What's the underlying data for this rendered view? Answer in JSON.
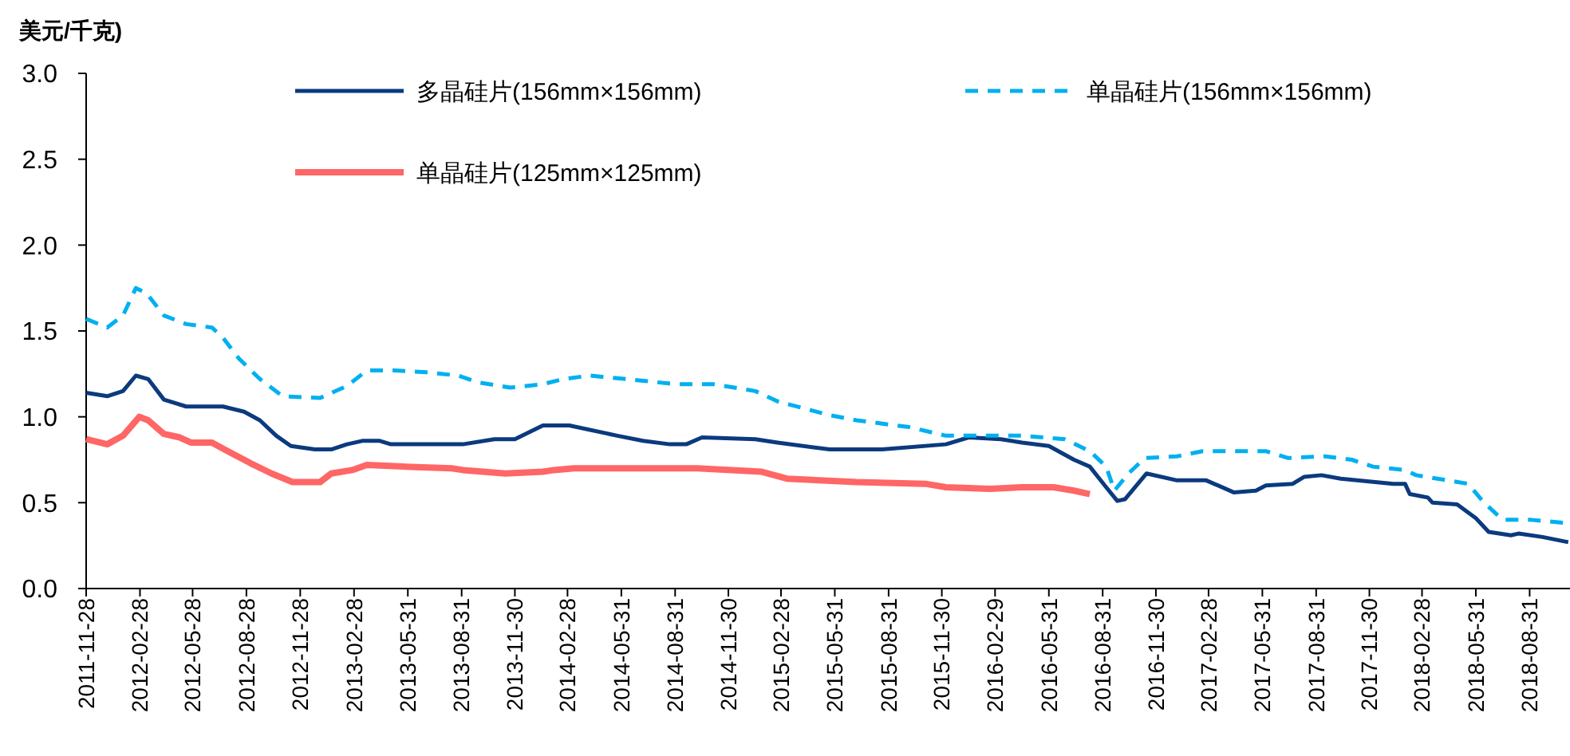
{
  "chart_data": {
    "type": "line",
    "ylabel": "美元/千克)",
    "xlim": [
      "2011-11-28",
      "2018-11-08"
    ],
    "ylim": [
      0,
      3
    ],
    "yticks": [
      {
        "value": 0,
        "label": "0.0"
      },
      {
        "value": 0.5,
        "label": "0.5"
      },
      {
        "value": 1,
        "label": "1.0"
      },
      {
        "value": 1.5,
        "label": "1.5"
      },
      {
        "value": 2,
        "label": "2.0"
      },
      {
        "value": 2.5,
        "label": "2.5"
      },
      {
        "value": 3,
        "label": "3.0"
      }
    ],
    "xticks": [
      {
        "value": "2011-11-28",
        "label": "2011-11-28"
      },
      {
        "value": "2012-02-28",
        "label": "2012-02-28"
      },
      {
        "value": "2012-05-28",
        "label": "2012-05-28"
      },
      {
        "value": "2012-08-28",
        "label": "2012-08-28"
      },
      {
        "value": "2012-11-28",
        "label": "2012-11-28"
      },
      {
        "value": "2013-02-28",
        "label": "2013-02-28"
      },
      {
        "value": "2013-05-31",
        "label": "2013-05-31"
      },
      {
        "value": "2013-08-31",
        "label": "2013-08-31"
      },
      {
        "value": "2013-11-30",
        "label": "2013-11-30"
      },
      {
        "value": "2014-02-28",
        "label": "2014-02-28"
      },
      {
        "value": "2014-05-31",
        "label": "2014-05-31"
      },
      {
        "value": "2014-08-31",
        "label": "2014-08-31"
      },
      {
        "value": "2014-11-30",
        "label": "2014-11-30"
      },
      {
        "value": "2015-02-28",
        "label": "2015-02-28"
      },
      {
        "value": "2015-05-31",
        "label": "2015-05-31"
      },
      {
        "value": "2015-08-31",
        "label": "2015-08-31"
      },
      {
        "value": "2015-11-30",
        "label": "2015-11-30"
      },
      {
        "value": "2016-02-29",
        "label": "2016-02-29"
      },
      {
        "value": "2016-05-31",
        "label": "2016-05-31"
      },
      {
        "value": "2016-08-31",
        "label": "2016-08-31"
      },
      {
        "value": "2016-11-30",
        "label": "2016-11-30"
      },
      {
        "value": "2017-02-28",
        "label": "2017-02-28"
      },
      {
        "value": "2017-05-31",
        "label": "2017-05-31"
      },
      {
        "value": "2017-08-31",
        "label": "2017-08-31"
      },
      {
        "value": "2017-11-30",
        "label": "2017-11-30"
      },
      {
        "value": "2018-02-28",
        "label": "2018-02-28"
      },
      {
        "value": "2018-05-31",
        "label": "2018-05-31"
      },
      {
        "value": "2018-08-31",
        "label": "2018-08-31"
      }
    ],
    "grid": false,
    "legend": "top",
    "marker": "none",
    "series": [
      {
        "name": "多晶硅片(156mm×156mm)",
        "color": "#0b3a7e",
        "line_style": "solid",
        "x": [
          "2011-11-28",
          "2012-01-03",
          "2012-01-30",
          "2012-02-21",
          "2012-03-13",
          "2012-04-09",
          "2012-05-17",
          "2012-07-19",
          "2012-08-24",
          "2012-09-20",
          "2012-10-18",
          "2012-11-12",
          "2012-12-23",
          "2013-01-20",
          "2013-02-16",
          "2013-03-14",
          "2013-04-13",
          "2013-05-02",
          "2013-07-01",
          "2013-09-02",
          "2013-10-26",
          "2013-11-30",
          "2014-01-17",
          "2014-03-03",
          "2014-05-24",
          "2014-07-07",
          "2014-08-22",
          "2014-09-19",
          "2014-10-16",
          "2015-01-15",
          "2015-02-22",
          "2015-05-22",
          "2015-08-20",
          "2015-12-07",
          "2016-01-15",
          "2016-03-10",
          "2016-04-15",
          "2016-05-31",
          "2016-07-13",
          "2016-08-09",
          "2016-09-06",
          "2016-09-25",
          "2016-10-08",
          "2016-11-14",
          "2017-01-05",
          "2017-02-24",
          "2017-04-12",
          "2017-05-20",
          "2017-06-06",
          "2017-07-22",
          "2017-08-10",
          "2017-09-09",
          "2017-10-12",
          "2018-01-10",
          "2018-01-30",
          "2018-02-07",
          "2018-03-10",
          "2018-03-18",
          "2018-04-29",
          "2018-05-31",
          "2018-06-22",
          "2018-07-30",
          "2018-08-12",
          "2018-09-22",
          "2018-11-05"
        ],
        "values": [
          1.14,
          1.12,
          1.15,
          1.24,
          1.22,
          1.1,
          1.06,
          1.06,
          1.03,
          0.98,
          0.89,
          0.83,
          0.81,
          0.81,
          0.84,
          0.86,
          0.86,
          0.84,
          0.84,
          0.84,
          0.87,
          0.87,
          0.95,
          0.95,
          0.89,
          0.86,
          0.84,
          0.84,
          0.88,
          0.87,
          0.85,
          0.81,
          0.81,
          0.84,
          0.88,
          0.87,
          0.85,
          0.83,
          0.75,
          0.71,
          0.59,
          0.51,
          0.52,
          0.67,
          0.63,
          0.63,
          0.56,
          0.57,
          0.6,
          0.61,
          0.65,
          0.66,
          0.64,
          0.61,
          0.61,
          0.55,
          0.53,
          0.5,
          0.49,
          0.41,
          0.33,
          0.31,
          0.32,
          0.3,
          0.27
        ]
      },
      {
        "name": "单晶硅片(156mm×156mm)",
        "color": "#00b0f0",
        "line_style": "dashed",
        "x": [
          "2011-11-28",
          "2012-01-03",
          "2012-01-30",
          "2012-02-21",
          "2012-03-10",
          "2012-04-09",
          "2012-05-17",
          "2012-06-30",
          "2012-07-19",
          "2012-08-15",
          "2012-09-20",
          "2012-10-29",
          "2013-01-01",
          "2013-02-16",
          "2013-03-22",
          "2013-05-07",
          "2013-07-01",
          "2013-08-25",
          "2013-09-29",
          "2013-11-22",
          "2014-01-17",
          "2014-02-21",
          "2014-04-07",
          "2014-07-07",
          "2014-08-31",
          "2014-11-04",
          "2015-01-15",
          "2015-02-22",
          "2015-05-22",
          "2015-07-07",
          "2015-10-05",
          "2015-12-07",
          "2016-02-20",
          "2016-04-15",
          "2016-06-27",
          "2016-08-09",
          "2016-09-06",
          "2016-09-20",
          "2016-10-14",
          "2016-11-11",
          "2017-01-05",
          "2017-02-18",
          "2017-06-06",
          "2017-07-14",
          "2017-09-15",
          "2017-10-31",
          "2017-12-06",
          "2018-01-30",
          "2018-02-18",
          "2018-05-18",
          "2018-06-14",
          "2018-07-16",
          "2018-09-03",
          "2018-11-05"
        ],
        "values": [
          1.57,
          1.52,
          1.59,
          1.75,
          1.72,
          1.59,
          1.54,
          1.52,
          1.46,
          1.34,
          1.22,
          1.12,
          1.11,
          1.18,
          1.27,
          1.27,
          1.26,
          1.24,
          1.2,
          1.17,
          1.19,
          1.22,
          1.24,
          1.21,
          1.19,
          1.19,
          1.15,
          1.09,
          1.01,
          0.98,
          0.94,
          0.89,
          0.89,
          0.89,
          0.87,
          0.8,
          0.71,
          0.57,
          0.67,
          0.76,
          0.77,
          0.8,
          0.8,
          0.76,
          0.77,
          0.75,
          0.71,
          0.69,
          0.66,
          0.61,
          0.5,
          0.4,
          0.4,
          0.38
        ]
      },
      {
        "name": "单晶硅片(125mm×125mm)",
        "color": "#ff6666",
        "line_style": "solid",
        "x": [
          "2011-11-28",
          "2012-01-03",
          "2012-01-30",
          "2012-02-27",
          "2012-03-13",
          "2012-04-09",
          "2012-05-06",
          "2012-05-25",
          "2012-06-30",
          "2012-07-27",
          "2012-09-04",
          "2012-10-10",
          "2012-11-15",
          "2013-01-01",
          "2013-01-20",
          "2013-02-25",
          "2013-03-22",
          "2013-05-23",
          "2013-08-14",
          "2013-09-02",
          "2013-11-14",
          "2014-01-17",
          "2014-02-05",
          "2014-03-11",
          "2014-10-08",
          "2015-01-26",
          "2015-03-10",
          "2015-07-07",
          "2015-11-02",
          "2015-12-07",
          "2016-02-20",
          "2016-04-15",
          "2016-06-08",
          "2016-07-13",
          "2016-08-09"
        ],
        "values": [
          0.87,
          0.84,
          0.89,
          1.0,
          0.98,
          0.9,
          0.88,
          0.85,
          0.85,
          0.8,
          0.73,
          0.67,
          0.62,
          0.62,
          0.67,
          0.69,
          0.72,
          0.71,
          0.7,
          0.69,
          0.67,
          0.68,
          0.69,
          0.7,
          0.7,
          0.68,
          0.64,
          0.62,
          0.61,
          0.59,
          0.58,
          0.59,
          0.59,
          0.57,
          0.55
        ]
      }
    ]
  }
}
